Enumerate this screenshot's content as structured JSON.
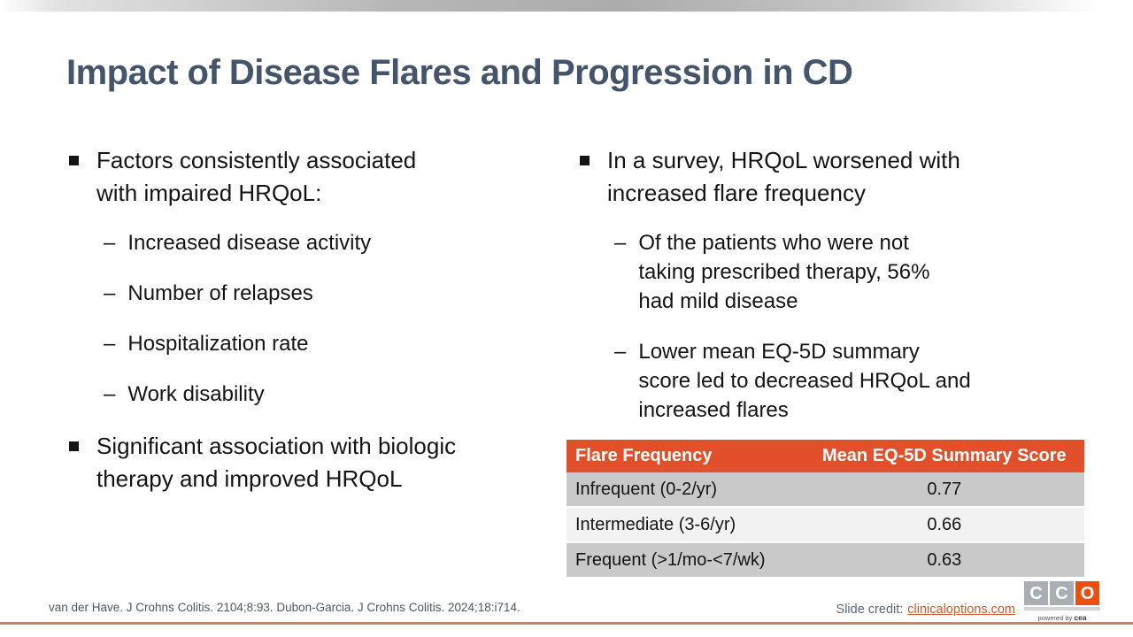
{
  "title": "Impact of Disease Flares and Progression in CD",
  "bullet_glyphs": {
    "dash": "–"
  },
  "left_column": {
    "bullet1": "Factors consistently associated\nwith impaired HRQoL:",
    "sub_bullets": [
      "Increased disease activity",
      "Number of relapses",
      "Hospitalization rate",
      "Work disability"
    ],
    "bullet2": "Significant association with biologic\ntherapy and improved HRQoL"
  },
  "right_column": {
    "bullet1": "In a survey, HRQoL worsened with\nincreased flare frequency",
    "sub_bullets": [
      "Of the patients who were not\ntaking prescribed therapy, 56%\nhad mild disease",
      "Lower mean EQ-5D summary\nscore led to decreased HRQoL and\nincreased flares"
    ]
  },
  "table": {
    "headers": [
      "Flare Frequency",
      "Mean EQ-5D Summary Score"
    ],
    "rows": [
      {
        "frequency": "Infrequent (0-2/yr)",
        "score": "0.77"
      },
      {
        "frequency": "Intermediate (3-6/yr)",
        "score": "0.66"
      },
      {
        "frequency": "Frequent (>1/mo-<7/wk)",
        "score": "0.63"
      }
    ]
  },
  "footer": {
    "citation": "van der Have. J Crohns Colitis. 2104;8:93. Dubon-Garcia. J Crohns Colitis. 2024;18:i714.",
    "credit_label": "Slide credit:",
    "credit_link": "clinicaloptions.com"
  },
  "logo": {
    "letters": [
      "C",
      "C",
      "O"
    ],
    "tagline_prefix": "powered by",
    "tagline_brand": "cea"
  },
  "colors": {
    "title_text": "#44546a",
    "table_header_bg": "#e1502b",
    "table_row_gray": "#c9c9c9",
    "table_row_light": "#f2f2f2",
    "link": "#cf5a27",
    "logo_gray": "#a8aeb3",
    "logo_orange": "#e8500f",
    "bottom_line": "#cb835e"
  }
}
